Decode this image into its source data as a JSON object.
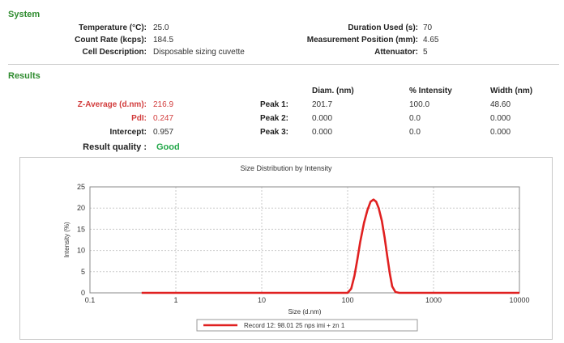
{
  "system": {
    "title": "System",
    "rows": [
      {
        "label": "Temperature (°C):",
        "value": "25.0",
        "label2": "Duration Used (s):",
        "value2": "70"
      },
      {
        "label": "Count Rate (kcps):",
        "value": "184.5",
        "label2": "Measurement Position (mm):",
        "value2": "4.65"
      },
      {
        "label": "Cell Description:",
        "value": "Disposable sizing cuvette",
        "label2": "Attenuator:",
        "value2": "5"
      }
    ]
  },
  "results": {
    "title": "Results",
    "headers": [
      "Diam. (nm)",
      "% Intensity",
      "Width (nm)"
    ],
    "z_average": {
      "label": "Z-Average (d.nm):",
      "value": "216.9"
    },
    "pdi": {
      "label": "PdI:",
      "value": "0.247"
    },
    "intercept": {
      "label": "Intercept:",
      "value": "0.957"
    },
    "quality": {
      "label": "Result quality :",
      "value": "Good"
    },
    "peaks": [
      {
        "label": "Peak 1:",
        "diam": "201.7",
        "intensity": "100.0",
        "width": "48.60"
      },
      {
        "label": "Peak 2:",
        "diam": "0.000",
        "intensity": "0.0",
        "width": "0.000"
      },
      {
        "label": "Peak 3:",
        "diam": "0.000",
        "intensity": "0.0",
        "width": "0.000"
      }
    ]
  },
  "chart_data": {
    "type": "line",
    "title": "Size Distribution by Intensity",
    "xlabel": "Size (d.nm)",
    "ylabel": "Intensity (%)",
    "x_scale": "log",
    "xlim": [
      0.1,
      10000
    ],
    "ylim": [
      0,
      25
    ],
    "x_ticks": [
      0.1,
      1,
      10,
      100,
      1000,
      10000
    ],
    "x_tick_labels": [
      "0.1",
      "1",
      "10",
      "100",
      "1000",
      "10000"
    ],
    "y_ticks": [
      0,
      5,
      10,
      15,
      20,
      25
    ],
    "grid": true,
    "legend_position": "bottom-center",
    "series": [
      {
        "name": "Record 12: 98.01 25 nps imi + zn 1",
        "color": "#e02020",
        "x": [
          0.4,
          1,
          10,
          50,
          100,
          110,
          120,
          130,
          140,
          155,
          170,
          185,
          200,
          215,
          230,
          250,
          270,
          290,
          310,
          330,
          360,
          400,
          1000,
          10000
        ],
        "y": [
          0,
          0,
          0,
          0,
          0,
          1.0,
          4.0,
          8.0,
          12.0,
          16.5,
          19.5,
          21.5,
          22.0,
          21.5,
          20.0,
          17.0,
          13.0,
          8.5,
          4.5,
          1.5,
          0.2,
          0,
          0,
          0
        ]
      }
    ]
  }
}
